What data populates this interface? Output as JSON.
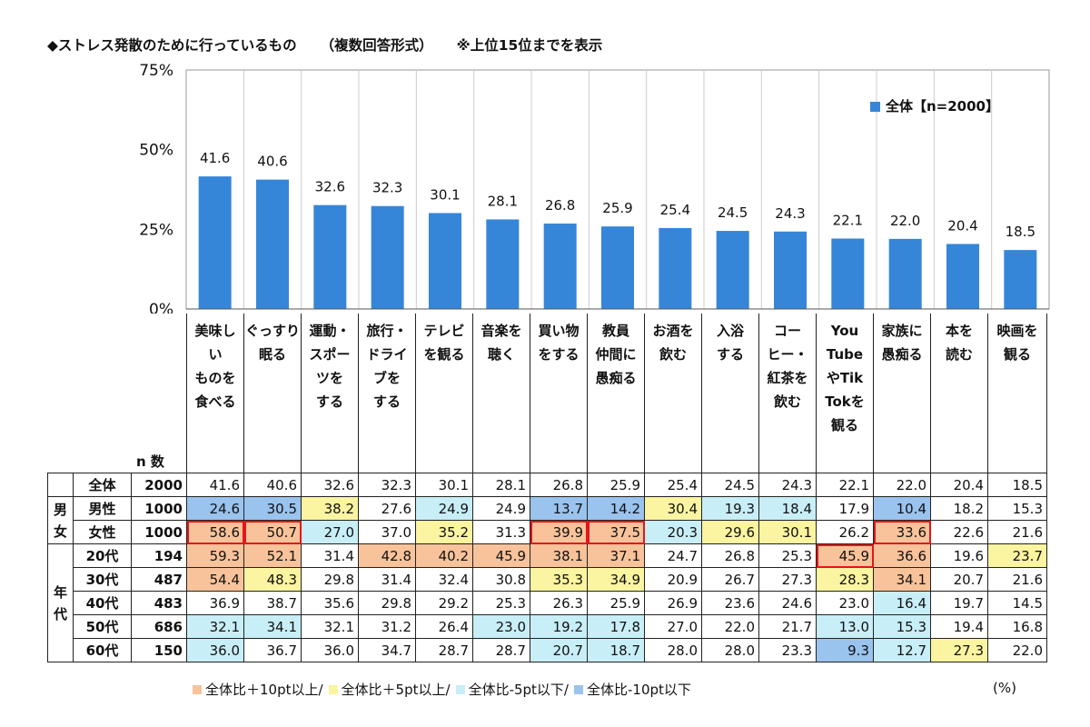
{
  "title": {
    "main": "◆ストレス発散のために行っているもの",
    "sub": "（複数回答形式）",
    "note": "※上位15位までを表示"
  },
  "legend": {
    "label": "全体【n=2000】",
    "color": "#3586d8"
  },
  "chart_data": {
    "type": "bar",
    "categories": [
      "美味しいものを食べる",
      "ぐっすり眠る",
      "運動・スポーツをする",
      "旅行・ドライブをする",
      "テレビを観る",
      "音楽を聴く",
      "買い物をする",
      "教員仲間に愚痴る",
      "お酒を飲む",
      "入浴する",
      "コーヒー・紅茶を飲む",
      "YouTubeやTikTokを観る",
      "家族に愚痴る",
      "本を読む",
      "映画を観る"
    ],
    "category_labels_wrapped": [
      "美味し\nい\nものを\n食べる",
      "ぐっすり\n眠る",
      "運動・\nスポー\nツを\nする",
      "旅行・\nドライ\nブを\nする",
      "テレビ\nを観る",
      "音楽を\n聴く",
      "買い物\nをする",
      "教員\n仲間に\n愚痴る",
      "お酒を\n飲む",
      "入浴\nする",
      "コー\nヒー・\n紅茶を\n飲む",
      "You\nTube\nやTik\nTokを\n観る",
      "家族に\n愚痴る",
      "本を\n読む",
      "映画を\n観る"
    ],
    "values": [
      41.6,
      40.6,
      32.6,
      32.3,
      30.1,
      28.1,
      26.8,
      25.9,
      25.4,
      24.5,
      24.3,
      22.1,
      22.0,
      20.4,
      18.5
    ],
    "value_labels": [
      "41.6",
      "40.6",
      "32.6",
      "32.3",
      "30.1",
      "28.1",
      "26.8",
      "25.9",
      "25.4",
      "24.5",
      "24.3",
      "22.1",
      "22.0",
      "20.4",
      "18.5"
    ],
    "ylim": [
      0,
      75
    ],
    "yticks": [
      "0%",
      "25%",
      "50%",
      "75%"
    ],
    "ytick_values": [
      0,
      25,
      50,
      75
    ],
    "bar_color": "#3586d8",
    "legend_position": "top-right",
    "grid": true
  },
  "table": {
    "n_header": "n 数",
    "groups": [
      {
        "label": "男女",
        "rows": [
          1,
          2
        ]
      },
      {
        "label": "年代",
        "rows": [
          3,
          4,
          5,
          6,
          7
        ]
      }
    ],
    "rows": [
      {
        "label": "全体",
        "n": "2000",
        "values": [
          "41.6",
          "40.6",
          "32.6",
          "32.3",
          "30.1",
          "28.1",
          "26.8",
          "25.9",
          "25.4",
          "24.5",
          "24.3",
          "22.1",
          "22.0",
          "20.4",
          "18.5"
        ],
        "marks": [
          "",
          "",
          "",
          "",
          "",
          "",
          "",
          "",
          "",
          "",
          "",
          "",
          "",
          "",
          ""
        ]
      },
      {
        "label": "男性",
        "n": "1000",
        "values": [
          "24.6",
          "30.5",
          "38.2",
          "27.6",
          "24.9",
          "24.9",
          "13.7",
          "14.2",
          "30.4",
          "19.3",
          "18.4",
          "17.9",
          "10.4",
          "18.2",
          "15.3"
        ],
        "marks": [
          "l10",
          "l10",
          "h5",
          "",
          "l5",
          "",
          "l10",
          "l10",
          "h5",
          "l5",
          "l5",
          "",
          "l10",
          "",
          ""
        ]
      },
      {
        "label": "女性",
        "n": "1000",
        "values": [
          "58.6",
          "50.7",
          "27.0",
          "37.0",
          "35.2",
          "31.3",
          "39.9",
          "37.5",
          "20.3",
          "29.6",
          "30.1",
          "26.2",
          "33.6",
          "22.6",
          "21.6"
        ],
        "marks": [
          "h10 box",
          "h10 box",
          "l5",
          "",
          "h5",
          "",
          "h10 box",
          "h10 box",
          "l5",
          "h5",
          "h5",
          "",
          "h10 box",
          "",
          ""
        ]
      },
      {
        "label": "20代",
        "n": "194",
        "values": [
          "59.3",
          "52.1",
          "31.4",
          "42.8",
          "40.2",
          "45.9",
          "38.1",
          "37.1",
          "24.7",
          "26.8",
          "25.3",
          "45.9",
          "36.6",
          "19.6",
          "23.7"
        ],
        "marks": [
          "h10",
          "h10",
          "",
          "h10",
          "h10",
          "h10",
          "h10",
          "h10",
          "",
          "",
          "",
          "h10 box",
          "h10",
          "",
          "h5"
        ]
      },
      {
        "label": "30代",
        "n": "487",
        "values": [
          "54.4",
          "48.3",
          "29.8",
          "31.4",
          "32.4",
          "30.8",
          "35.3",
          "34.9",
          "20.9",
          "26.7",
          "27.3",
          "28.3",
          "34.1",
          "20.7",
          "21.6"
        ],
        "marks": [
          "h10",
          "h5",
          "",
          "",
          "",
          "",
          "h5",
          "h5",
          "",
          "",
          "",
          "h5",
          "h10",
          "",
          ""
        ]
      },
      {
        "label": "40代",
        "n": "483",
        "values": [
          "36.9",
          "38.7",
          "35.6",
          "29.8",
          "29.2",
          "25.3",
          "26.3",
          "25.9",
          "26.9",
          "23.6",
          "24.6",
          "23.0",
          "16.4",
          "19.7",
          "14.5"
        ],
        "marks": [
          "",
          "",
          "",
          "",
          "",
          "",
          "",
          "",
          "",
          "",
          "",
          "",
          "l5",
          "",
          ""
        ]
      },
      {
        "label": "50代",
        "n": "686",
        "values": [
          "32.1",
          "34.1",
          "32.1",
          "31.2",
          "26.4",
          "23.0",
          "19.2",
          "17.8",
          "27.0",
          "22.0",
          "21.7",
          "13.0",
          "15.3",
          "19.4",
          "16.8"
        ],
        "marks": [
          "l5",
          "l5",
          "",
          "",
          "",
          "l5",
          "l5",
          "l5",
          "",
          "",
          "",
          "l5",
          "l5",
          "",
          ""
        ]
      },
      {
        "label": "60代",
        "n": "150",
        "values": [
          "36.0",
          "36.7",
          "36.0",
          "34.7",
          "28.7",
          "28.7",
          "20.7",
          "18.7",
          "28.0",
          "28.0",
          "23.3",
          "9.3",
          "12.7",
          "27.3",
          "22.0"
        ],
        "marks": [
          "l5",
          "",
          "",
          "",
          "",
          "",
          "l5",
          "l5",
          "",
          "",
          "",
          "l10",
          "l5",
          "h5",
          ""
        ]
      }
    ]
  },
  "footnote": {
    "items": [
      {
        "label": "全体比＋10pt以上/",
        "color": "#f8c39a"
      },
      {
        "label": "全体比＋5pt以上/",
        "color": "#fbf4a0"
      },
      {
        "label": "全体比-5pt以下/",
        "color": "#c8eef7"
      },
      {
        "label": "全体比-10pt以下",
        "color": "#9ac3ee"
      }
    ],
    "unit": "(%)"
  }
}
